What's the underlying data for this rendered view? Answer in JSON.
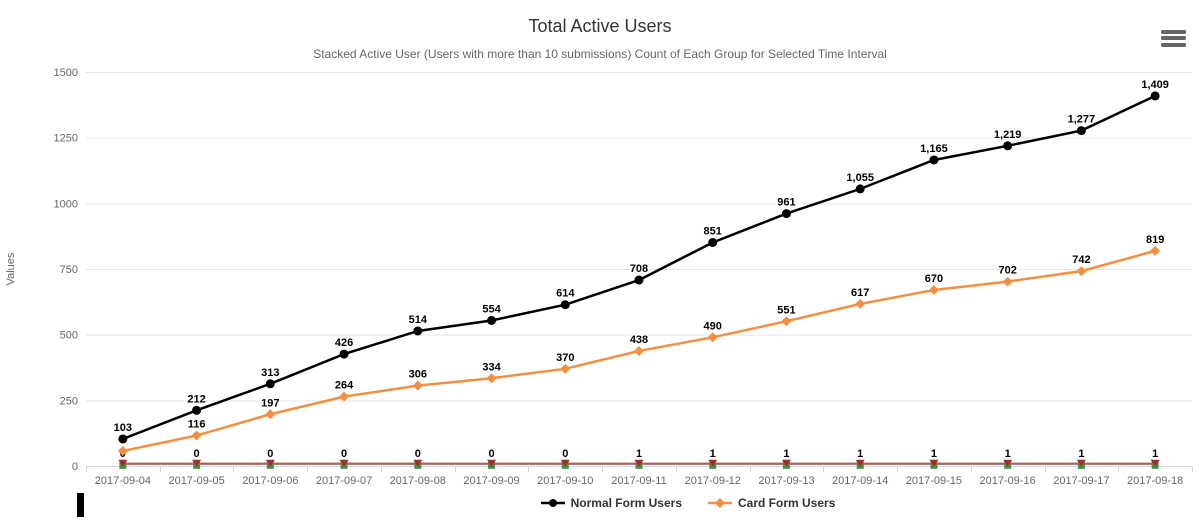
{
  "icons": {
    "export_menu": "hamburger-icon"
  },
  "artifacts": {
    "text_cursor_visible": true
  },
  "chart_data": {
    "type": "line",
    "title": "Total Active Users",
    "subtitle": "Stacked Active User (Users with more than 10 submissions) Count of Each Group for Selected Time Interval",
    "ylabel": "Values",
    "xlabel": "",
    "ylim": [
      0,
      1500
    ],
    "yticks": [
      0,
      250,
      500,
      750,
      1000,
      1250,
      1500
    ],
    "grid": "horizontal-only",
    "legend_position": "bottom-center",
    "axis_line_color": "#ccd6eb",
    "grid_color": "#e6e6e6",
    "categories": [
      "2017-09-04",
      "2017-09-05",
      "2017-09-06",
      "2017-09-07",
      "2017-09-08",
      "2017-09-09",
      "2017-09-10",
      "2017-09-11",
      "2017-09-12",
      "2017-09-13",
      "2017-09-14",
      "2017-09-15",
      "2017-09-16",
      "2017-09-17",
      "2017-09-18"
    ],
    "series": [
      {
        "name": "Normal Form Users",
        "color": "#000000",
        "marker": "circle",
        "in_legend": true,
        "values": [
          103,
          212,
          313,
          426,
          514,
          554,
          614,
          708,
          851,
          961,
          1055,
          1165,
          1219,
          1277,
          1409
        ],
        "labels": [
          "103",
          "212",
          "313",
          "426",
          "514",
          "554",
          "614",
          "708",
          "851",
          "961",
          "1,055",
          "1,165",
          "1,219",
          "1,277",
          "1,409"
        ]
      },
      {
        "name": "Card Form Users",
        "color": "#F28F43",
        "marker": "diamond",
        "in_legend": true,
        "values": [
          57,
          116,
          197,
          264,
          306,
          334,
          370,
          438,
          490,
          551,
          617,
          670,
          702,
          742,
          819
        ],
        "labels": [
          "",
          "116",
          "197",
          "264",
          "306",
          "334",
          "370",
          "438",
          "490",
          "551",
          "617",
          "670",
          "702",
          "742",
          "819"
        ]
      },
      {
        "name": "",
        "color": "#3F9142",
        "marker": "square",
        "in_legend": false,
        "values": [
          0,
          0,
          0,
          0,
          0,
          0,
          0,
          1,
          1,
          1,
          1,
          1,
          1,
          1,
          1
        ],
        "labels": []
      },
      {
        "name": "",
        "color": "#9E2F2A",
        "line_color": "#B05C5C",
        "marker": "triangle-down",
        "in_legend": false,
        "values": [
          0,
          0,
          0,
          0,
          0,
          0,
          0,
          1,
          1,
          1,
          1,
          1,
          1,
          1,
          1
        ],
        "labels": [
          "0",
          "0",
          "0",
          "0",
          "0",
          "0",
          "0",
          "1",
          "1",
          "1",
          "1",
          "1",
          "1",
          "1",
          "1"
        ]
      }
    ]
  }
}
